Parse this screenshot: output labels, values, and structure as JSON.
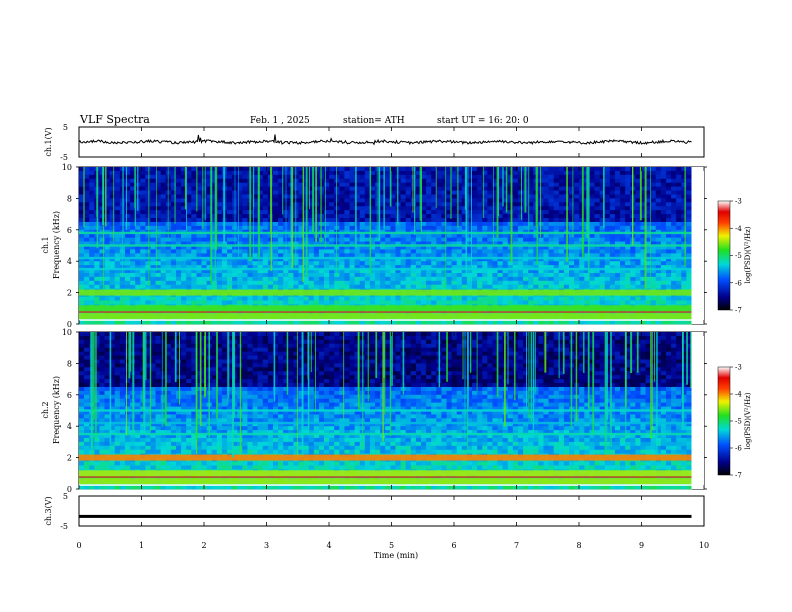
{
  "header": {
    "title": "VLF  Spectra",
    "date": "Feb. 1  , 2025",
    "station": "station= ATH",
    "start": "start  UT  =   16: 20: 0"
  },
  "chart_data": {
    "type": "heatmap",
    "xlabel": "Time  (min)",
    "xlim": [
      0,
      10
    ],
    "xticks": [
      "0",
      "1",
      "2",
      "3",
      "4",
      "5",
      "6",
      "7",
      "8",
      "9",
      "10"
    ],
    "data_end_min": 9.8,
    "panels": [
      {
        "id": "ch1_waveform",
        "type": "line",
        "ylabel": "ch.1(V)",
        "ylim": [
          -5,
          5
        ],
        "yticks": [
          "5",
          "-5"
        ],
        "baseline_v": 0.0
      },
      {
        "id": "ch1_spectrogram",
        "type": "heatmap",
        "ylabel": "ch.1",
        "ylabel2": "Frequency  (kHz)",
        "ylim": [
          0,
          10
        ],
        "yticks": [
          "0",
          "2",
          "4",
          "6",
          "8",
          "10"
        ],
        "colorbar": {
          "label": "log(PSD)(V²/Hz)",
          "range": [
            -7,
            -3
          ],
          "ticks": [
            "-3",
            "-4",
            "-5",
            "-6",
            "-7"
          ]
        },
        "bands_khz": [
          0.5,
          1.0,
          2.0,
          3.5,
          4.2,
          5.0,
          5.8
        ]
      },
      {
        "id": "ch2_spectrogram",
        "type": "heatmap",
        "ylabel": "ch.2",
        "ylabel2": "Frequency  (kHz)",
        "ylim": [
          0,
          10
        ],
        "yticks": [
          "0",
          "2",
          "4",
          "6",
          "8",
          "10"
        ],
        "colorbar": {
          "label": "log(PSD)(V²/Hz)",
          "range": [
            -7,
            -3
          ],
          "ticks": [
            "-3",
            "-4",
            "-5",
            "-6",
            "-7"
          ]
        },
        "bands_khz": [
          0.5,
          1.0,
          2.0,
          3.5,
          4.2,
          5.0
        ]
      },
      {
        "id": "ch3_waveform",
        "type": "line",
        "ylabel": "ch.3(V)",
        "ylim": [
          -5,
          5
        ],
        "yticks": [
          "5",
          "-5"
        ],
        "baseline_v": -1.8
      }
    ]
  }
}
